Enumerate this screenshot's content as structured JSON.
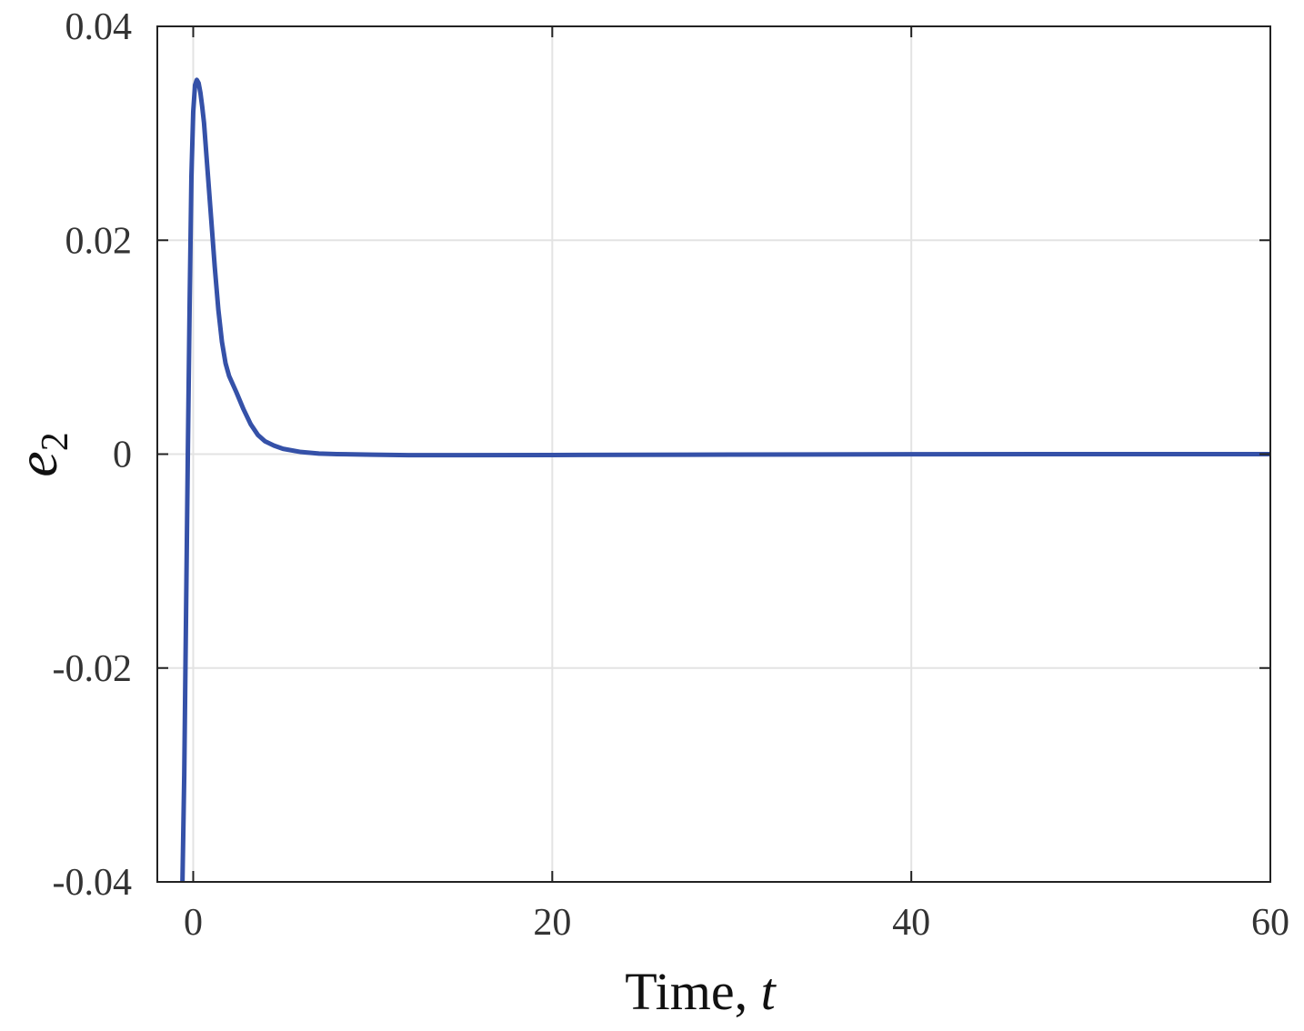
{
  "chart_data": {
    "type": "line",
    "title": "",
    "xlabel": "Time, ",
    "xlabel_var": "t",
    "ylabel": "e",
    "ylabel_sub": "2",
    "xlim": [
      -2,
      60
    ],
    "ylim": [
      -0.04,
      0.04
    ],
    "xticks": [
      0,
      20,
      40,
      60
    ],
    "xtick_labels": [
      "0",
      "20",
      "40",
      "60"
    ],
    "yticks": [
      -0.04,
      -0.02,
      0,
      0.02,
      0.04
    ],
    "ytick_labels": [
      "-0.04",
      "-0.02",
      "0",
      "0.02",
      "0.04"
    ],
    "grid": true,
    "colors": {
      "line": "#3551a8",
      "grid": "#e3e3e3",
      "axis": "#222222"
    },
    "series": [
      {
        "x": [
          -0.6,
          -0.5,
          -0.4,
          -0.3,
          -0.2,
          -0.1,
          0,
          0.1,
          0.2,
          0.3,
          0.4,
          0.5,
          0.6,
          0.8,
          1.0,
          1.2,
          1.4,
          1.6,
          1.8,
          2.0,
          2.4,
          2.8,
          3.2,
          3.6,
          4.0,
          4.5,
          5.0,
          6.0,
          7.0,
          8.0,
          10.0,
          12.0,
          15.0,
          20.0,
          30.0,
          40.0,
          50.0,
          60.0
        ],
        "y": [
          -0.04,
          -0.03,
          -0.015,
          0.0,
          0.014,
          0.026,
          0.032,
          0.0345,
          0.035,
          0.0347,
          0.0338,
          0.0325,
          0.031,
          0.0265,
          0.022,
          0.0175,
          0.0135,
          0.0105,
          0.0085,
          0.0073,
          0.0058,
          0.0042,
          0.0028,
          0.0018,
          0.0012,
          0.0008,
          0.0005,
          0.0002,
          5e-05,
          0.0,
          -5e-05,
          -0.0001,
          -0.0001,
          -8e-05,
          -4e-05,
          -1e-05,
          0.0,
          0.0
        ]
      }
    ]
  }
}
